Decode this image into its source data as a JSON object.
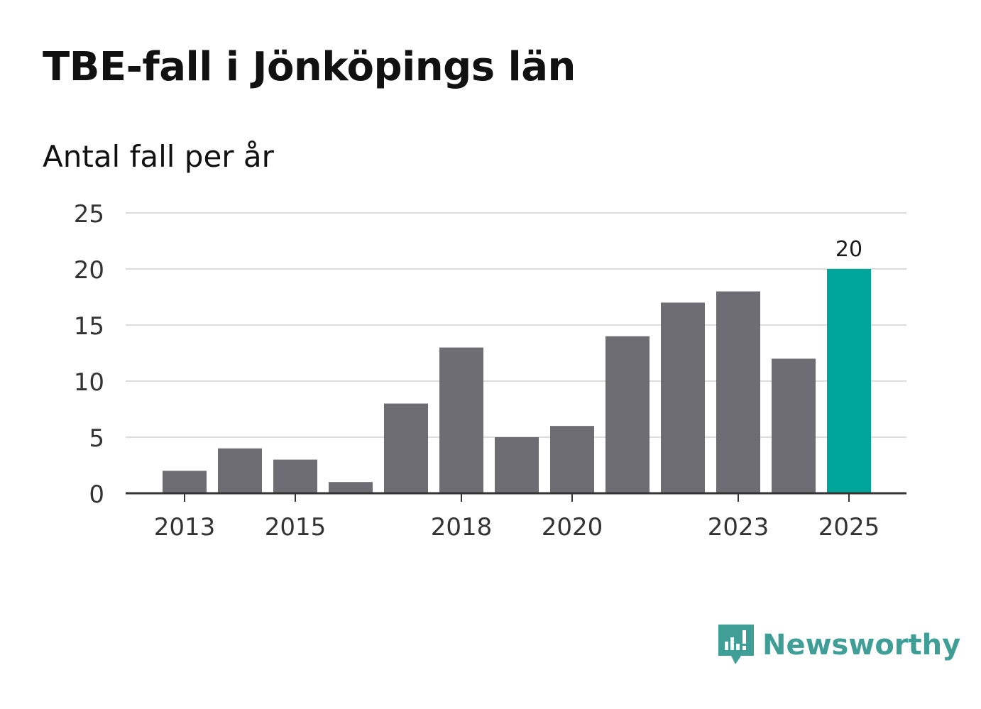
{
  "title": "TBE-fall i Jönköpings län",
  "subtitle": "Antal fall per år",
  "brand": {
    "name": "Newsworthy",
    "icon": "newsworthy-logo-icon",
    "color": "#3f9e96"
  },
  "colors": {
    "bar": "#6e6d73",
    "highlight": "#00a599",
    "grid": "#dcdcdc",
    "axis": "#333333"
  },
  "chart_data": {
    "type": "bar",
    "categories": [
      "2013",
      "2014",
      "2015",
      "2016",
      "2017",
      "2018",
      "2019",
      "2020",
      "2021",
      "2022",
      "2023",
      "2024",
      "2025"
    ],
    "values": [
      2,
      4,
      3,
      1,
      8,
      13,
      5,
      6,
      14,
      17,
      18,
      12,
      20
    ],
    "highlight_category": "2025",
    "data_labels": [
      {
        "category": "2025",
        "label": "20"
      }
    ],
    "x_tick_labels": [
      "2013",
      "2015",
      "2018",
      "2020",
      "2023",
      "2025"
    ],
    "y_ticks": [
      0,
      5,
      10,
      15,
      20,
      25
    ],
    "ylim": [
      0,
      25
    ],
    "title": "TBE-fall i Jönköpings län",
    "ylabel": "Antal fall per år",
    "xlabel": "",
    "grid": true
  }
}
